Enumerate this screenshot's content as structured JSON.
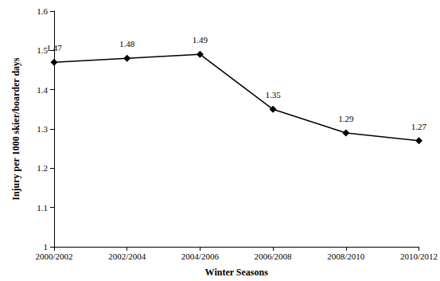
{
  "chart_data": {
    "type": "line",
    "x_label": "Winter Seasons",
    "y_label": "Injury per 1000 skier/boarder days",
    "categories": [
      "2000/2002",
      "2002/2004",
      "2004/2006",
      "2006/2008",
      "2008/2010",
      "2010/2012"
    ],
    "values": [
      1.47,
      1.48,
      1.49,
      1.35,
      1.29,
      1.27
    ],
    "color": "#000000",
    "marker": "diamond",
    "line_style": "solid",
    "data_labels": true,
    "grid": false,
    "ylim": [
      1,
      1.6
    ],
    "yticks": [
      1,
      1.1,
      1.2,
      1.3,
      1.4,
      1.5,
      1.6
    ]
  }
}
